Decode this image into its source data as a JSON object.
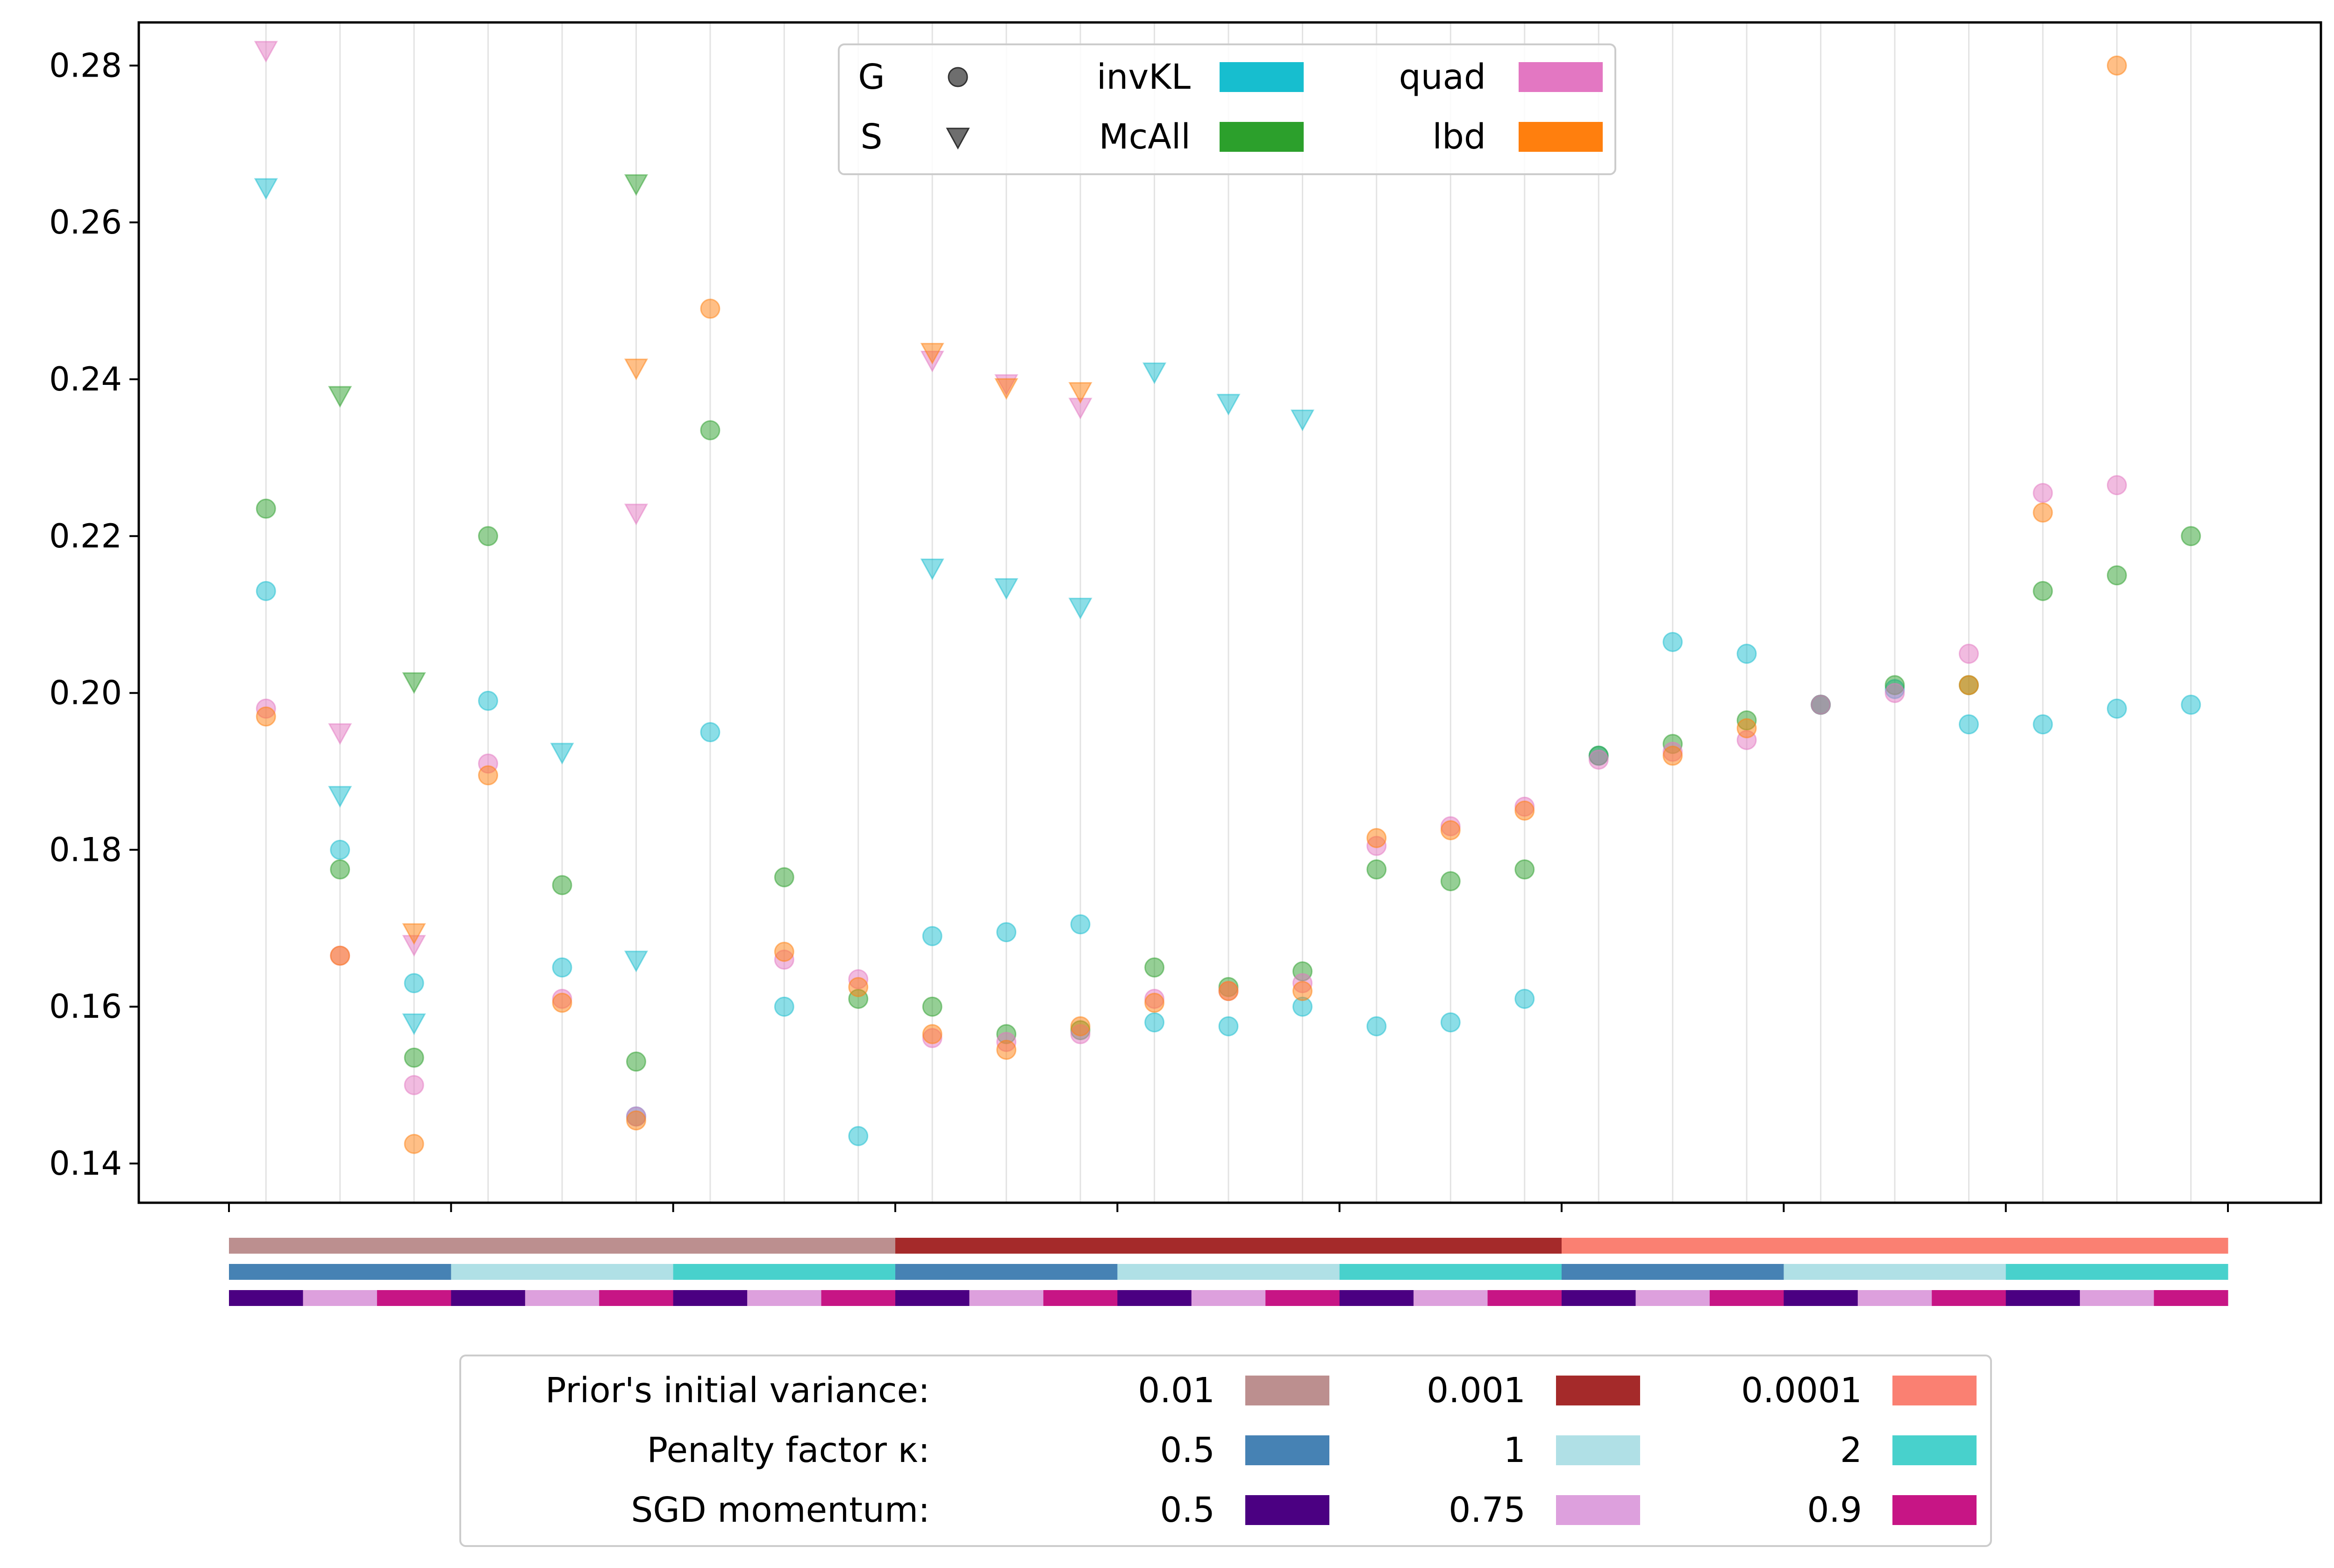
{
  "chart_data": {
    "type": "scatter",
    "title": "",
    "xlabel": "",
    "ylabel": "",
    "ylim": [
      0.135,
      0.2855
    ],
    "y_ticks": [
      "0.14",
      "0.16",
      "0.18",
      "0.20",
      "0.22",
      "0.24",
      "0.26",
      "0.28"
    ],
    "y_tick_values": [
      0.14,
      0.16,
      0.18,
      0.2,
      0.22,
      0.24,
      0.26,
      0.28
    ],
    "n_slots": 27,
    "group_tick_boundaries": [
      0,
      3,
      6,
      9,
      12,
      15,
      18,
      21,
      24,
      27
    ],
    "marker_legend": [
      {
        "label": "G",
        "marker": "circle"
      },
      {
        "label": "S",
        "marker": "triangle"
      }
    ],
    "method_legend": [
      {
        "key": "invKL",
        "label": "invKL",
        "color": "#17becf"
      },
      {
        "key": "McAll",
        "label": "McAll",
        "color": "#2ca02c"
      },
      {
        "key": "quad",
        "label": "quad",
        "color": "#e377c2"
      },
      {
        "key": "lbd",
        "label": "lbd",
        "color": "#ff7f0e"
      }
    ],
    "config_bars": [
      {
        "name": "prior-variance",
        "segment_len": 9,
        "colors": [
          "#bc8f8f",
          "#a52a2a",
          "#fa8072"
        ]
      },
      {
        "name": "penalty-factor",
        "segment_len": 3,
        "colors": [
          "#4682b4",
          "#b0e0e6",
          "#48d1cc"
        ]
      },
      {
        "name": "sgd-momentum",
        "segment_len": 1,
        "colors": [
          "#4b0082",
          "#dda0dd",
          "#c71585"
        ]
      }
    ],
    "config_legend": {
      "rows": [
        {
          "label": "Prior's initial variance:",
          "entries": [
            {
              "value": "0.01",
              "color": "#bc8f8f"
            },
            {
              "value": "0.001",
              "color": "#a52a2a"
            },
            {
              "value": "0.0001",
              "color": "#fa8072"
            }
          ]
        },
        {
          "label": "Penalty factor κ:",
          "entries": [
            {
              "value": "0.5",
              "color": "#4682b4"
            },
            {
              "value": "1",
              "color": "#b0e0e6"
            },
            {
              "value": "2",
              "color": "#48d1cc"
            }
          ]
        },
        {
          "label": "SGD momentum:",
          "entries": [
            {
              "value": "0.5",
              "color": "#4b0082"
            },
            {
              "value": "0.75",
              "color": "#dda0dd"
            },
            {
              "value": "0.9",
              "color": "#c71585"
            }
          ]
        }
      ]
    },
    "series": [
      {
        "name": "invKL",
        "marker": "G",
        "color": "#17becf",
        "points": [
          [
            0,
            0.213
          ],
          [
            1,
            0.18
          ],
          [
            2,
            0.163
          ],
          [
            3,
            0.199
          ],
          [
            4,
            0.165
          ],
          [
            5,
            0.146
          ],
          [
            6,
            0.195
          ],
          [
            7,
            0.16
          ],
          [
            8,
            0.1435
          ],
          [
            9,
            0.169
          ],
          [
            10,
            0.1695
          ],
          [
            11,
            0.1705
          ],
          [
            12,
            0.158
          ],
          [
            13,
            0.1575
          ],
          [
            14,
            0.16
          ],
          [
            15,
            0.1575
          ],
          [
            16,
            0.158
          ],
          [
            17,
            0.161
          ],
          [
            18,
            0.192
          ],
          [
            19,
            0.2065
          ],
          [
            20,
            0.205
          ],
          [
            21,
            0.1985
          ],
          [
            22,
            0.2005
          ],
          [
            23,
            0.196
          ],
          [
            24,
            0.196
          ],
          [
            25,
            0.198
          ],
          [
            26,
            0.1985
          ]
        ]
      },
      {
        "name": "invKL",
        "marker": "S",
        "color": "#17becf",
        "points": [
          [
            0,
            0.2645
          ],
          [
            1,
            0.187
          ],
          [
            2,
            0.158
          ],
          [
            4,
            0.1925
          ],
          [
            5,
            0.166
          ],
          [
            9,
            0.216
          ],
          [
            10,
            0.2135
          ],
          [
            11,
            0.211
          ],
          [
            12,
            0.241
          ],
          [
            13,
            0.237
          ],
          [
            14,
            0.235
          ]
        ]
      },
      {
        "name": "McAll",
        "marker": "G",
        "color": "#2ca02c",
        "points": [
          [
            0,
            0.2235
          ],
          [
            1,
            0.1775
          ],
          [
            2,
            0.1535
          ],
          [
            3,
            0.22
          ],
          [
            4,
            0.1755
          ],
          [
            5,
            0.153
          ],
          [
            6,
            0.2335
          ],
          [
            7,
            0.1765
          ],
          [
            8,
            0.161
          ],
          [
            9,
            0.16
          ],
          [
            10,
            0.1565
          ],
          [
            11,
            0.157
          ],
          [
            12,
            0.165
          ],
          [
            13,
            0.1625
          ],
          [
            14,
            0.1645
          ],
          [
            15,
            0.1775
          ],
          [
            16,
            0.176
          ],
          [
            17,
            0.1775
          ],
          [
            18,
            0.192
          ],
          [
            19,
            0.1935
          ],
          [
            20,
            0.1965
          ],
          [
            21,
            0.1985
          ],
          [
            22,
            0.201
          ],
          [
            23,
            0.201
          ],
          [
            24,
            0.213
          ],
          [
            25,
            0.215
          ],
          [
            26,
            0.22
          ]
        ]
      },
      {
        "name": "McAll",
        "marker": "S",
        "color": "#2ca02c",
        "points": [
          [
            1,
            0.238
          ],
          [
            2,
            0.2015
          ],
          [
            5,
            0.265
          ]
        ]
      },
      {
        "name": "quad",
        "marker": "G",
        "color": "#e377c2",
        "points": [
          [
            0,
            0.198
          ],
          [
            1,
            0.1665
          ],
          [
            2,
            0.15
          ],
          [
            3,
            0.191
          ],
          [
            4,
            0.161
          ],
          [
            5,
            0.146
          ],
          [
            7,
            0.166
          ],
          [
            8,
            0.1635
          ],
          [
            9,
            0.156
          ],
          [
            10,
            0.1555
          ],
          [
            11,
            0.1565
          ],
          [
            12,
            0.161
          ],
          [
            13,
            0.162
          ],
          [
            14,
            0.163
          ],
          [
            15,
            0.1805
          ],
          [
            16,
            0.183
          ],
          [
            17,
            0.1855
          ],
          [
            18,
            0.1915
          ],
          [
            19,
            0.1925
          ],
          [
            20,
            0.194
          ],
          [
            21,
            0.1985
          ],
          [
            22,
            0.2
          ],
          [
            23,
            0.205
          ],
          [
            24,
            0.2255
          ],
          [
            25,
            0.2265
          ]
        ]
      },
      {
        "name": "quad",
        "marker": "S",
        "color": "#e377c2",
        "points": [
          [
            0,
            0.282
          ],
          [
            1,
            0.195
          ],
          [
            2,
            0.168
          ],
          [
            5,
            0.223
          ],
          [
            9,
            0.2425
          ],
          [
            10,
            0.2395
          ],
          [
            11,
            0.2365
          ]
        ]
      },
      {
        "name": "lbd",
        "marker": "G",
        "color": "#ff7f0e",
        "points": [
          [
            0,
            0.197
          ],
          [
            1,
            0.1665
          ],
          [
            2,
            0.1425
          ],
          [
            3,
            0.1895
          ],
          [
            4,
            0.1605
          ],
          [
            5,
            0.1455
          ],
          [
            6,
            0.249
          ],
          [
            7,
            0.167
          ],
          [
            8,
            0.1625
          ],
          [
            9,
            0.1565
          ],
          [
            10,
            0.1545
          ],
          [
            11,
            0.1575
          ],
          [
            12,
            0.1605
          ],
          [
            13,
            0.162
          ],
          [
            14,
            0.162
          ],
          [
            15,
            0.1815
          ],
          [
            16,
            0.1825
          ],
          [
            17,
            0.185
          ],
          [
            19,
            0.192
          ],
          [
            20,
            0.1955
          ],
          [
            23,
            0.201
          ],
          [
            24,
            0.223
          ],
          [
            25,
            0.28
          ]
        ]
      },
      {
        "name": "lbd",
        "marker": "S",
        "color": "#ff7f0e",
        "points": [
          [
            2,
            0.1695
          ],
          [
            5,
            0.2415
          ],
          [
            9,
            0.2435
          ],
          [
            10,
            0.239
          ],
          [
            11,
            0.2385
          ]
        ]
      }
    ]
  }
}
